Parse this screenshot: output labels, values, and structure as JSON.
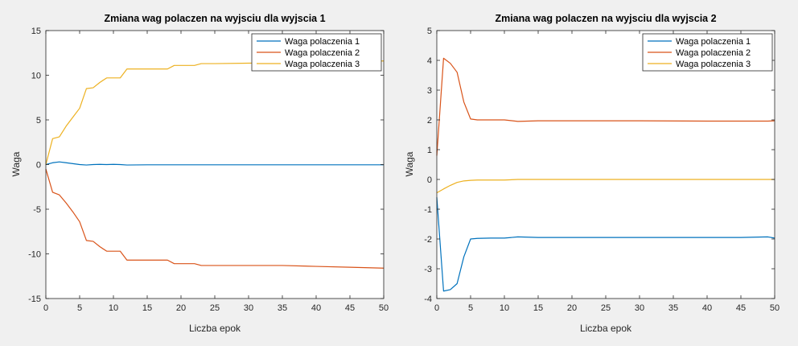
{
  "chart_data": [
    {
      "type": "line",
      "title": "Zmiana wag polaczen na wyjsciu dla wyjscia 1",
      "xlabel": "Liczba epok",
      "ylabel": "Waga",
      "xlim": [
        0,
        50
      ],
      "ylim": [
        -15,
        15
      ],
      "xticks": [
        0,
        5,
        10,
        15,
        20,
        25,
        30,
        35,
        40,
        45,
        50
      ],
      "yticks": [
        -15,
        -10,
        -5,
        0,
        5,
        10,
        15
      ],
      "grid": false,
      "legend_position": "top-right",
      "series": [
        {
          "name": "Waga polaczenia 1",
          "color": "#0072bd",
          "x": [
            0,
            1,
            2,
            3,
            4,
            5,
            6,
            7,
            8,
            9,
            10,
            11,
            12,
            15,
            20,
            25,
            30,
            35,
            40,
            45,
            50
          ],
          "y": [
            0,
            0.2,
            0.3,
            0.2,
            0.1,
            0.0,
            -0.05,
            0.0,
            0.02,
            0.0,
            0.02,
            0.0,
            -0.05,
            -0.03,
            -0.03,
            -0.03,
            -0.03,
            -0.03,
            -0.03,
            -0.03,
            -0.03
          ]
        },
        {
          "name": "Waga polaczenia 2",
          "color": "#d95319",
          "x": [
            0,
            1,
            2,
            3,
            4,
            5,
            6,
            7,
            8,
            9,
            10,
            11,
            12,
            13,
            18,
            19,
            20,
            22,
            23,
            25,
            30,
            35,
            40,
            45,
            50
          ],
          "y": [
            -0.5,
            -3.1,
            -3.4,
            -4.3,
            -5.3,
            -6.4,
            -8.5,
            -8.6,
            -9.2,
            -9.7,
            -9.7,
            -9.7,
            -10.7,
            -10.7,
            -10.7,
            -11.1,
            -11.1,
            -11.1,
            -11.3,
            -11.3,
            -11.3,
            -11.3,
            -11.4,
            -11.5,
            -11.6
          ]
        },
        {
          "name": "Waga polaczenia 3",
          "color": "#edb120",
          "x": [
            0,
            1,
            2,
            3,
            4,
            5,
            6,
            7,
            8,
            9,
            10,
            11,
            12,
            13,
            18,
            19,
            20,
            22,
            23,
            25,
            30,
            35,
            40,
            45,
            50
          ],
          "y": [
            0,
            2.9,
            3.1,
            4.3,
            5.3,
            6.3,
            8.5,
            8.6,
            9.2,
            9.7,
            9.7,
            9.7,
            10.7,
            10.7,
            10.7,
            11.1,
            11.1,
            11.1,
            11.3,
            11.3,
            11.35,
            11.4,
            11.45,
            11.5,
            11.6
          ]
        }
      ]
    },
    {
      "type": "line",
      "title": "Zmiana wag polaczen na wyjsciu dla wyjscia 2",
      "xlabel": "Liczba epok",
      "ylabel": "Waga",
      "xlim": [
        0,
        50
      ],
      "ylim": [
        -4,
        5
      ],
      "xticks": [
        0,
        5,
        10,
        15,
        20,
        25,
        30,
        35,
        40,
        45,
        50
      ],
      "yticks": [
        -4,
        -3,
        -2,
        -1,
        0,
        1,
        2,
        3,
        4,
        5
      ],
      "grid": false,
      "legend_position": "top-right",
      "series": [
        {
          "name": "Waga polaczenia 1",
          "color": "#0072bd",
          "x": [
            0,
            1,
            2,
            3,
            4,
            5,
            6,
            8,
            10,
            12,
            15,
            20,
            30,
            40,
            45,
            49,
            50
          ],
          "y": [
            -0.6,
            -3.75,
            -3.7,
            -3.5,
            -2.6,
            -2.0,
            -1.98,
            -1.97,
            -1.97,
            -1.93,
            -1.95,
            -1.95,
            -1.95,
            -1.95,
            -1.95,
            -1.93,
            -1.97
          ]
        },
        {
          "name": "Waga polaczenia 2",
          "color": "#d95319",
          "x": [
            0,
            1,
            2,
            3,
            4,
            5,
            6,
            8,
            10,
            12,
            15,
            20,
            30,
            40,
            45,
            49,
            50
          ],
          "y": [
            0.8,
            4.07,
            3.9,
            3.6,
            2.6,
            2.03,
            2.0,
            2.0,
            2.0,
            1.95,
            1.97,
            1.97,
            1.97,
            1.96,
            1.96,
            1.96,
            1.97
          ]
        },
        {
          "name": "Waga polaczenia 3",
          "color": "#edb120",
          "x": [
            0,
            1,
            2,
            3,
            4,
            5,
            6,
            8,
            10,
            12,
            15,
            20,
            30,
            40,
            50
          ],
          "y": [
            -0.45,
            -0.32,
            -0.2,
            -0.1,
            -0.05,
            -0.03,
            -0.02,
            -0.02,
            -0.02,
            0.0,
            0.0,
            0.0,
            0.0,
            0.0,
            0.0
          ]
        }
      ]
    }
  ]
}
